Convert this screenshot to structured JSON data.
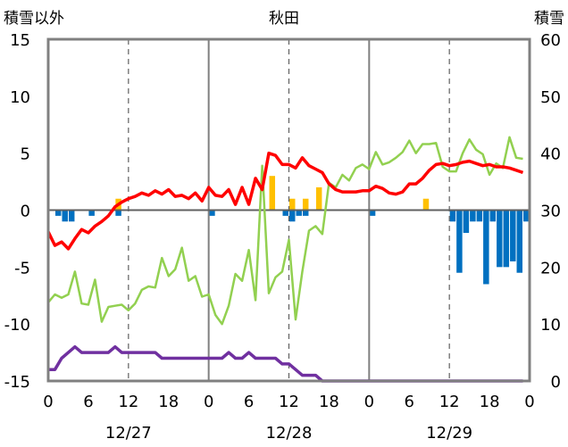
{
  "chart_data": {
    "type": "line",
    "title": "秋田",
    "left_axis_label": "積雪以外",
    "right_axis_label": "積雪",
    "left_ylim": [
      -15,
      15
    ],
    "left_ticks": [
      15,
      10,
      5,
      0,
      -5,
      -10,
      -15
    ],
    "right_ylim": [
      0,
      60
    ],
    "right_ticks": [
      60,
      50,
      40,
      30,
      20,
      10,
      0
    ],
    "x_range_hours": [
      0,
      72
    ],
    "x_tick_hours": [
      0,
      6,
      12,
      18,
      24,
      30,
      36,
      42,
      48,
      54,
      60,
      66,
      72
    ],
    "x_tick_labels": [
      "0",
      "6",
      "12",
      "18",
      "0",
      "6",
      "12",
      "18",
      "0",
      "6",
      "12",
      "18",
      "0"
    ],
    "date_labels": [
      {
        "hour": 12,
        "text": "12/27"
      },
      {
        "hour": 36,
        "text": "12/28"
      },
      {
        "hour": 60,
        "text": "12/29"
      }
    ],
    "grid": {
      "major_hours": [
        24,
        48
      ],
      "dashed_hours": [
        12,
        36,
        60
      ]
    },
    "colors": {
      "temperature": "#ff0000",
      "dewpoint": "#92d050",
      "snow_depth": "#7030a0",
      "precip": "#ffc000",
      "snow_change": "#0070c0"
    },
    "series": [
      {
        "key": "temperature",
        "axis": "left",
        "values": [
          -1.9,
          -3.1,
          -2.8,
          -3.4,
          -2.5,
          -1.7,
          -2.0,
          -1.4,
          -1.0,
          -0.5,
          0.3,
          0.7,
          1.0,
          1.2,
          1.5,
          1.3,
          1.7,
          1.4,
          1.8,
          1.2,
          1.3,
          1.0,
          1.5,
          0.8,
          2.0,
          1.3,
          1.2,
          1.8,
          0.5,
          2.0,
          0.5,
          2.8,
          1.8,
          5.0,
          4.8,
          4.0,
          4.0,
          3.7,
          4.6,
          3.9,
          3.6,
          3.3,
          2.3,
          1.8,
          1.6,
          1.6,
          1.6,
          1.7,
          1.7,
          2.1,
          1.9,
          1.5,
          1.4,
          1.6,
          2.3,
          2.3,
          2.8,
          3.5,
          4.0,
          4.1,
          3.9,
          4.0,
          4.2,
          4.3,
          4.1,
          3.9,
          4.0,
          3.8,
          3.8,
          3.7,
          3.5,
          3.3
        ]
      },
      {
        "key": "dewpoint",
        "axis": "left",
        "values": [
          -8.1,
          -7.4,
          -7.7,
          -7.4,
          -5.4,
          -8.2,
          -8.3,
          -6.1,
          -9.8,
          -8.5,
          -8.4,
          -8.3,
          -8.8,
          -8.2,
          -7.0,
          -6.7,
          -6.8,
          -4.2,
          -5.8,
          -5.2,
          -3.3,
          -6.2,
          -5.8,
          -7.6,
          -7.4,
          -9.2,
          -10.0,
          -8.4,
          -5.6,
          -6.2,
          -3.5,
          -7.9,
          3.9,
          -7.3,
          -5.9,
          -5.4,
          -2.6,
          -9.6,
          -5.4,
          -1.8,
          -1.4,
          -2.1,
          2.4,
          2.0,
          3.1,
          2.6,
          3.7,
          4.0,
          3.6,
          5.1,
          4.0,
          4.2,
          4.6,
          5.1,
          6.1,
          5.0,
          5.8,
          5.8,
          5.9,
          3.8,
          3.4,
          3.4,
          5.0,
          6.2,
          5.3,
          4.9,
          3.1,
          4.1,
          3.7,
          6.4,
          4.6,
          4.5
        ]
      },
      {
        "key": "snow_depth",
        "axis": "right",
        "values": [
          2,
          2,
          4,
          5,
          6,
          5,
          5,
          5,
          5,
          5,
          6,
          5,
          5,
          5,
          5,
          5,
          5,
          4,
          4,
          4,
          4,
          4,
          4,
          4,
          4,
          4,
          4,
          5,
          4,
          4,
          5,
          4,
          4,
          4,
          4,
          3,
          3,
          2,
          1,
          1,
          1,
          0,
          0,
          0,
          0,
          0,
          0,
          0,
          0,
          0,
          0,
          0,
          0,
          0,
          0,
          0,
          0,
          0,
          0,
          0,
          0,
          0,
          0,
          0,
          0,
          0,
          0,
          0,
          0,
          0,
          0,
          0
        ]
      }
    ],
    "bars": [
      {
        "key": "precip",
        "axis": "left",
        "items": [
          {
            "hour": 10,
            "value": 1.0
          },
          {
            "hour": 33,
            "value": 3.0
          },
          {
            "hour": 36,
            "value": 1.0
          },
          {
            "hour": 38,
            "value": 1.0
          },
          {
            "hour": 40,
            "value": 2.0
          },
          {
            "hour": 56,
            "value": 1.0
          }
        ]
      },
      {
        "key": "snow_change",
        "axis": "left",
        "items": [
          {
            "hour": 1,
            "value": -0.5
          },
          {
            "hour": 2,
            "value": -1.0
          },
          {
            "hour": 3,
            "value": -1.0
          },
          {
            "hour": 6,
            "value": -0.5
          },
          {
            "hour": 10,
            "value": -0.5
          },
          {
            "hour": 24,
            "value": -0.5
          },
          {
            "hour": 35,
            "value": -0.5
          },
          {
            "hour": 36,
            "value": -1.0
          },
          {
            "hour": 37,
            "value": -0.5
          },
          {
            "hour": 38,
            "value": -0.5
          },
          {
            "hour": 48,
            "value": -0.5
          },
          {
            "hour": 60,
            "value": -1.0
          },
          {
            "hour": 61,
            "value": -5.5
          },
          {
            "hour": 62,
            "value": -2.0
          },
          {
            "hour": 63,
            "value": -1.0
          },
          {
            "hour": 64,
            "value": -1.0
          },
          {
            "hour": 65,
            "value": -6.5
          },
          {
            "hour": 66,
            "value": -1.0
          },
          {
            "hour": 67,
            "value": -5.0
          },
          {
            "hour": 68,
            "value": -5.0
          },
          {
            "hour": 69,
            "value": -4.5
          },
          {
            "hour": 70,
            "value": -5.5
          },
          {
            "hour": 71,
            "value": -1.0
          }
        ]
      }
    ]
  }
}
